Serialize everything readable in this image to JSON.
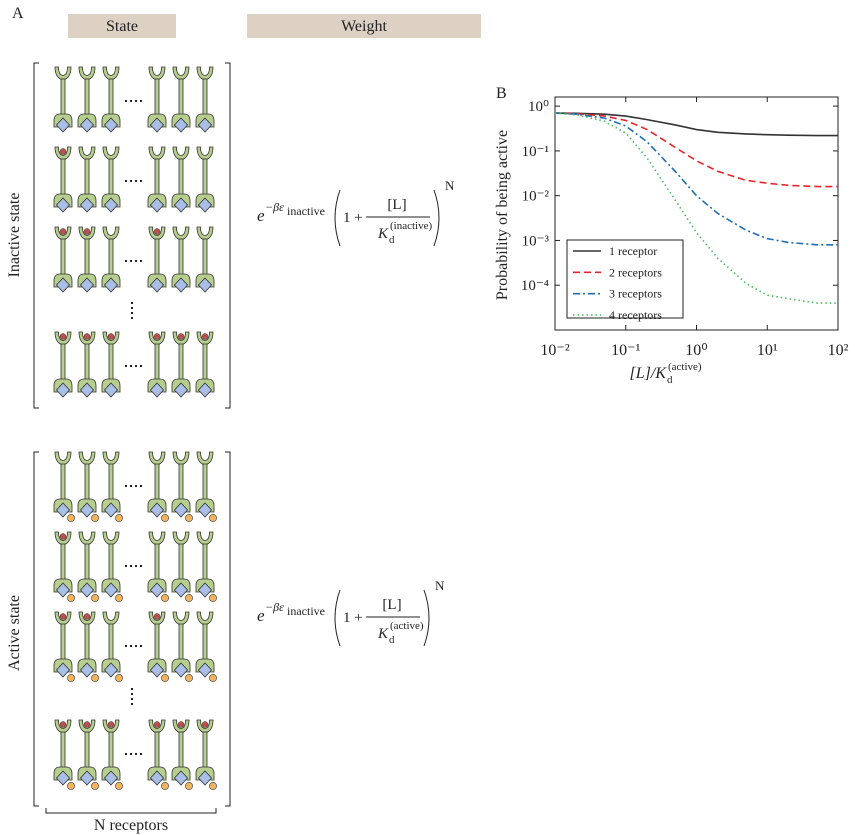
{
  "panel_a": {
    "label": "A",
    "state_header": "State",
    "weight_header": "Weight",
    "inactive_label": "Inactive state",
    "active_label": "Active state",
    "receptors_label": "N receptors",
    "inactive_formula": {
      "base": "e",
      "exponent": "−βε",
      "exponent_sub": "inactive",
      "one_plus": "1 +",
      "numerator": "[L]",
      "denominator": "K",
      "denominator_sub": "d",
      "denominator_sup": "(inactive)",
      "power": "N"
    },
    "active_formula": {
      "base": "e",
      "exponent": "−βε",
      "exponent_sub": "inactive",
      "one_plus": "1 +",
      "numerator": "[L]",
      "denominator": "K",
      "denominator_sub": "d",
      "denominator_sup": "(active)",
      "power": "N"
    }
  },
  "chart_data": {
    "type": "line",
    "panel_label": "B",
    "y_label": "Probability of being active",
    "x_label": {
      "main": "[L]/K",
      "sub": "d",
      "sup": "(active)"
    },
    "log_x": true,
    "log_y": true,
    "legend": "lower left",
    "x": [
      0.01,
      0.02,
      0.05,
      0.1,
      0.2,
      0.5,
      1,
      2,
      5,
      10,
      20,
      50,
      100
    ],
    "xlim": [
      0.01,
      100
    ],
    "ylim": [
      1e-05,
      1.6
    ],
    "xticks": [
      {
        "value": 0.01,
        "label": "10⁻²"
      },
      {
        "value": 0.1,
        "label": "10⁻¹"
      },
      {
        "value": 1,
        "label": "10⁰"
      },
      {
        "value": 10,
        "label": "10¹"
      },
      {
        "value": 100,
        "label": "10²"
      }
    ],
    "yticks": [
      {
        "value": 0.0001,
        "label": "10⁻⁴"
      },
      {
        "value": 0.001,
        "label": "10⁻³"
      },
      {
        "value": 0.01,
        "label": "10⁻²"
      },
      {
        "value": 0.1,
        "label": "10⁻¹"
      },
      {
        "value": 1,
        "label": "10⁰"
      }
    ],
    "series": [
      {
        "name": "1 receptor",
        "color": "#333333",
        "dash": "solid",
        "values": [
          0.7,
          0.69,
          0.66,
          0.6,
          0.5,
          0.38,
          0.3,
          0.26,
          0.24,
          0.23,
          0.225,
          0.22,
          0.22
        ]
      },
      {
        "name": "2 receptors",
        "color": "#e8242a",
        "dash": "dashed",
        "values": [
          0.7,
          0.68,
          0.6,
          0.48,
          0.3,
          0.12,
          0.06,
          0.035,
          0.022,
          0.019,
          0.017,
          0.016,
          0.016
        ]
      },
      {
        "name": "3 receptors",
        "color": "#1f6fb4",
        "dash": "dashdot",
        "values": [
          0.7,
          0.66,
          0.54,
          0.36,
          0.16,
          0.035,
          0.01,
          0.004,
          0.0017,
          0.0011,
          0.0009,
          0.0008,
          0.0008
        ]
      },
      {
        "name": "4 receptors",
        "color": "#4cbb5c",
        "dash": "dotted",
        "values": [
          0.7,
          0.64,
          0.46,
          0.25,
          0.07,
          0.008,
          0.0015,
          0.0004,
          0.00011,
          6e-05,
          5e-05,
          4e-05,
          4e-05
        ]
      }
    ]
  }
}
